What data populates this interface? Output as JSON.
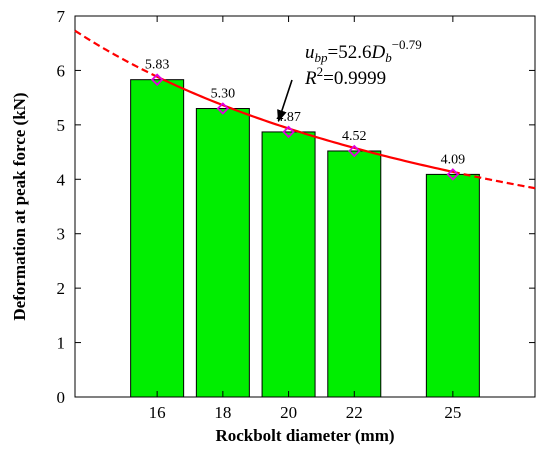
{
  "chart_data": {
    "type": "bar",
    "x": [
      16,
      18,
      20,
      22,
      25
    ],
    "categories": [
      "16",
      "18",
      "20",
      "22",
      "25"
    ],
    "values": [
      5.83,
      5.3,
      4.87,
      4.52,
      4.09
    ],
    "data_labels": [
      "5.83",
      "5.30",
      "4.87",
      "4.52",
      "4.09"
    ],
    "xlabel": "Rockbolt diameter (mm)",
    "ylabel": "Deformation at peak force (kN)",
    "xlim": [
      13.5,
      27.5
    ],
    "ylim": [
      0,
      7
    ],
    "yticks": [
      0,
      1,
      2,
      3,
      4,
      5,
      6,
      7
    ],
    "ytick_labels": [
      "0",
      "1",
      "2",
      "3",
      "4",
      "5",
      "6",
      "7"
    ],
    "grid": false,
    "bar_color": "#00ee00",
    "marker_color": "#e000e0",
    "fit": {
      "type": "power",
      "coefficient": 52.6,
      "exponent": -0.79,
      "r_squared": 0.9999,
      "solid_range": [
        16,
        25
      ],
      "color": "#ff0000"
    },
    "annotation": {
      "coef_text": "52.6",
      "exponent_text": "−0.79",
      "r2_text": "=0.9999",
      "points_to_x": 19.6
    }
  }
}
